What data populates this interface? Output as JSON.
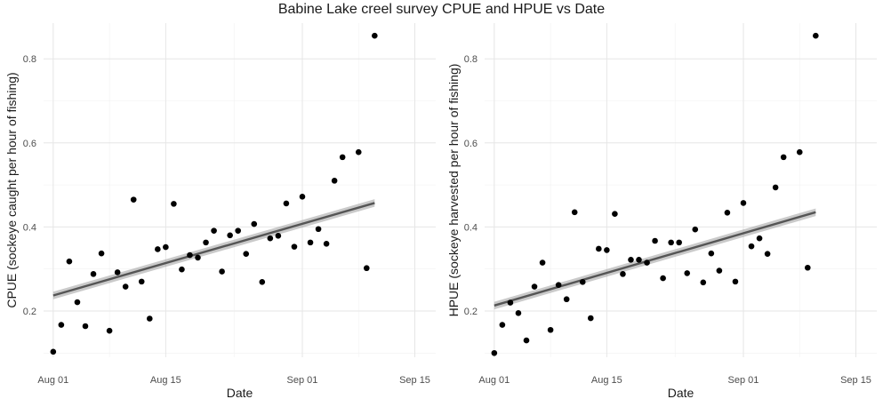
{
  "figure": {
    "title": "Babine Lake creel survey CPUE and HPUE vs Date"
  },
  "chart_data": [
    {
      "type": "scatter",
      "xlabel": "Date",
      "ylabel": "CPUE (sockeye caught per hour of fishing)",
      "x_ticks": [
        "Aug 01",
        "Aug 15",
        "Sep 01",
        "Sep 15"
      ],
      "x_tick_days": [
        0,
        14,
        31,
        45
      ],
      "y_ticks": [
        "0.2",
        "0.4",
        "0.6",
        "0.8"
      ],
      "y_tick_values": [
        0.2,
        0.4,
        0.6,
        0.8
      ],
      "xlim_days": [
        -1.2,
        47.6
      ],
      "ylim": [
        0.09,
        0.885
      ],
      "grid": true,
      "trend": {
        "type": "linear",
        "start": [
          0,
          0.237
        ],
        "end": [
          40,
          0.457
        ],
        "band_halfwidth": 0.009
      },
      "points": [
        {
          "day": 0,
          "y": 0.103
        },
        {
          "day": 1,
          "y": 0.167
        },
        {
          "day": 2,
          "y": 0.318
        },
        {
          "day": 3,
          "y": 0.221
        },
        {
          "day": 4,
          "y": 0.164
        },
        {
          "day": 5,
          "y": 0.288
        },
        {
          "day": 6,
          "y": 0.337
        },
        {
          "day": 7,
          "y": 0.153
        },
        {
          "day": 8,
          "y": 0.292
        },
        {
          "day": 9,
          "y": 0.258
        },
        {
          "day": 10,
          "y": 0.465
        },
        {
          "day": 11,
          "y": 0.27
        },
        {
          "day": 12,
          "y": 0.182
        },
        {
          "day": 13,
          "y": 0.347
        },
        {
          "day": 14,
          "y": 0.352
        },
        {
          "day": 15,
          "y": 0.455
        },
        {
          "day": 16,
          "y": 0.299
        },
        {
          "day": 17,
          "y": 0.333
        },
        {
          "day": 18,
          "y": 0.327
        },
        {
          "day": 19,
          "y": 0.363
        },
        {
          "day": 20,
          "y": 0.391
        },
        {
          "day": 21,
          "y": 0.294
        },
        {
          "day": 22,
          "y": 0.38
        },
        {
          "day": 23,
          "y": 0.391
        },
        {
          "day": 24,
          "y": 0.336
        },
        {
          "day": 25,
          "y": 0.407
        },
        {
          "day": 26,
          "y": 0.269
        },
        {
          "day": 27,
          "y": 0.373
        },
        {
          "day": 28,
          "y": 0.379
        },
        {
          "day": 29,
          "y": 0.456
        },
        {
          "day": 30,
          "y": 0.353
        },
        {
          "day": 31,
          "y": 0.472
        },
        {
          "day": 32,
          "y": 0.363
        },
        {
          "day": 33,
          "y": 0.395
        },
        {
          "day": 34,
          "y": 0.36
        },
        {
          "day": 35,
          "y": 0.51
        },
        {
          "day": 36,
          "y": 0.566
        },
        {
          "day": 38,
          "y": 0.578
        },
        {
          "day": 39,
          "y": 0.302
        },
        {
          "day": 40,
          "y": 0.855
        }
      ]
    },
    {
      "type": "scatter",
      "xlabel": "Date",
      "ylabel": "HPUE (sockeye harvested per hour of fishing)",
      "x_ticks": [
        "Aug 01",
        "Aug 15",
        "Sep 01",
        "Sep 15"
      ],
      "x_tick_days": [
        0,
        14,
        31,
        45
      ],
      "y_ticks": [
        "0.2",
        "0.4",
        "0.6",
        "0.8"
      ],
      "y_tick_values": [
        0.2,
        0.4,
        0.6,
        0.8
      ],
      "xlim_days": [
        -1.2,
        47.6
      ],
      "ylim": [
        0.09,
        0.885
      ],
      "grid": true,
      "trend": {
        "type": "linear",
        "start": [
          0,
          0.213
        ],
        "end": [
          40,
          0.435
        ],
        "band_halfwidth": 0.009
      },
      "points": [
        {
          "day": 0,
          "y": 0.1
        },
        {
          "day": 1,
          "y": 0.167
        },
        {
          "day": 2,
          "y": 0.22
        },
        {
          "day": 3,
          "y": 0.195
        },
        {
          "day": 4,
          "y": 0.13
        },
        {
          "day": 5,
          "y": 0.258
        },
        {
          "day": 6,
          "y": 0.315
        },
        {
          "day": 7,
          "y": 0.155
        },
        {
          "day": 8,
          "y": 0.262
        },
        {
          "day": 9,
          "y": 0.228
        },
        {
          "day": 10,
          "y": 0.435
        },
        {
          "day": 11,
          "y": 0.269
        },
        {
          "day": 12,
          "y": 0.183
        },
        {
          "day": 13,
          "y": 0.348
        },
        {
          "day": 14,
          "y": 0.345
        },
        {
          "day": 15,
          "y": 0.431
        },
        {
          "day": 16,
          "y": 0.288
        },
        {
          "day": 17,
          "y": 0.322
        },
        {
          "day": 18,
          "y": 0.322
        },
        {
          "day": 19,
          "y": 0.315
        },
        {
          "day": 20,
          "y": 0.367
        },
        {
          "day": 21,
          "y": 0.278
        },
        {
          "day": 22,
          "y": 0.363
        },
        {
          "day": 23,
          "y": 0.363
        },
        {
          "day": 24,
          "y": 0.29
        },
        {
          "day": 25,
          "y": 0.394
        },
        {
          "day": 26,
          "y": 0.268
        },
        {
          "day": 27,
          "y": 0.337
        },
        {
          "day": 28,
          "y": 0.296
        },
        {
          "day": 29,
          "y": 0.434
        },
        {
          "day": 30,
          "y": 0.27
        },
        {
          "day": 31,
          "y": 0.457
        },
        {
          "day": 32,
          "y": 0.354
        },
        {
          "day": 33,
          "y": 0.373
        },
        {
          "day": 34,
          "y": 0.336
        },
        {
          "day": 35,
          "y": 0.494
        },
        {
          "day": 36,
          "y": 0.566
        },
        {
          "day": 38,
          "y": 0.578
        },
        {
          "day": 39,
          "y": 0.303
        },
        {
          "day": 40,
          "y": 0.855
        }
      ]
    }
  ]
}
